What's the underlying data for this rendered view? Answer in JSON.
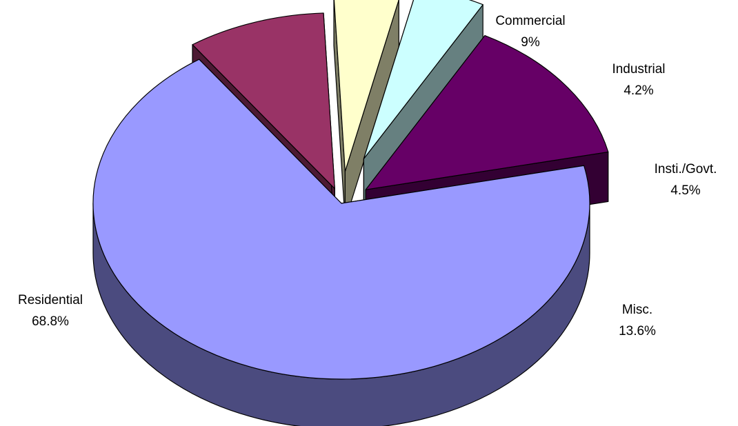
{
  "chart_data": {
    "type": "pie",
    "style": "3d-exploded",
    "slices": [
      {
        "name": "Residential",
        "value": 68.8,
        "label": "68.8%",
        "color": "#9999ff",
        "side_color": "#4b4b7f"
      },
      {
        "name": "Commercial",
        "value": 9,
        "label": "9%",
        "color": "#993366",
        "side_color": "#4c1a33"
      },
      {
        "name": "Industrial",
        "value": 4.2,
        "label": "4.2%",
        "color": "#ffffcc",
        "side_color": "#7f7f66"
      },
      {
        "name": "Insti./Govt.",
        "value": 4.5,
        "label": "4.5%",
        "color": "#ccffff",
        "side_color": "#668080"
      },
      {
        "name": "Misc.",
        "value": 13.6,
        "label": "13.6%",
        "color": "#660066",
        "side_color": "#330033"
      }
    ]
  }
}
